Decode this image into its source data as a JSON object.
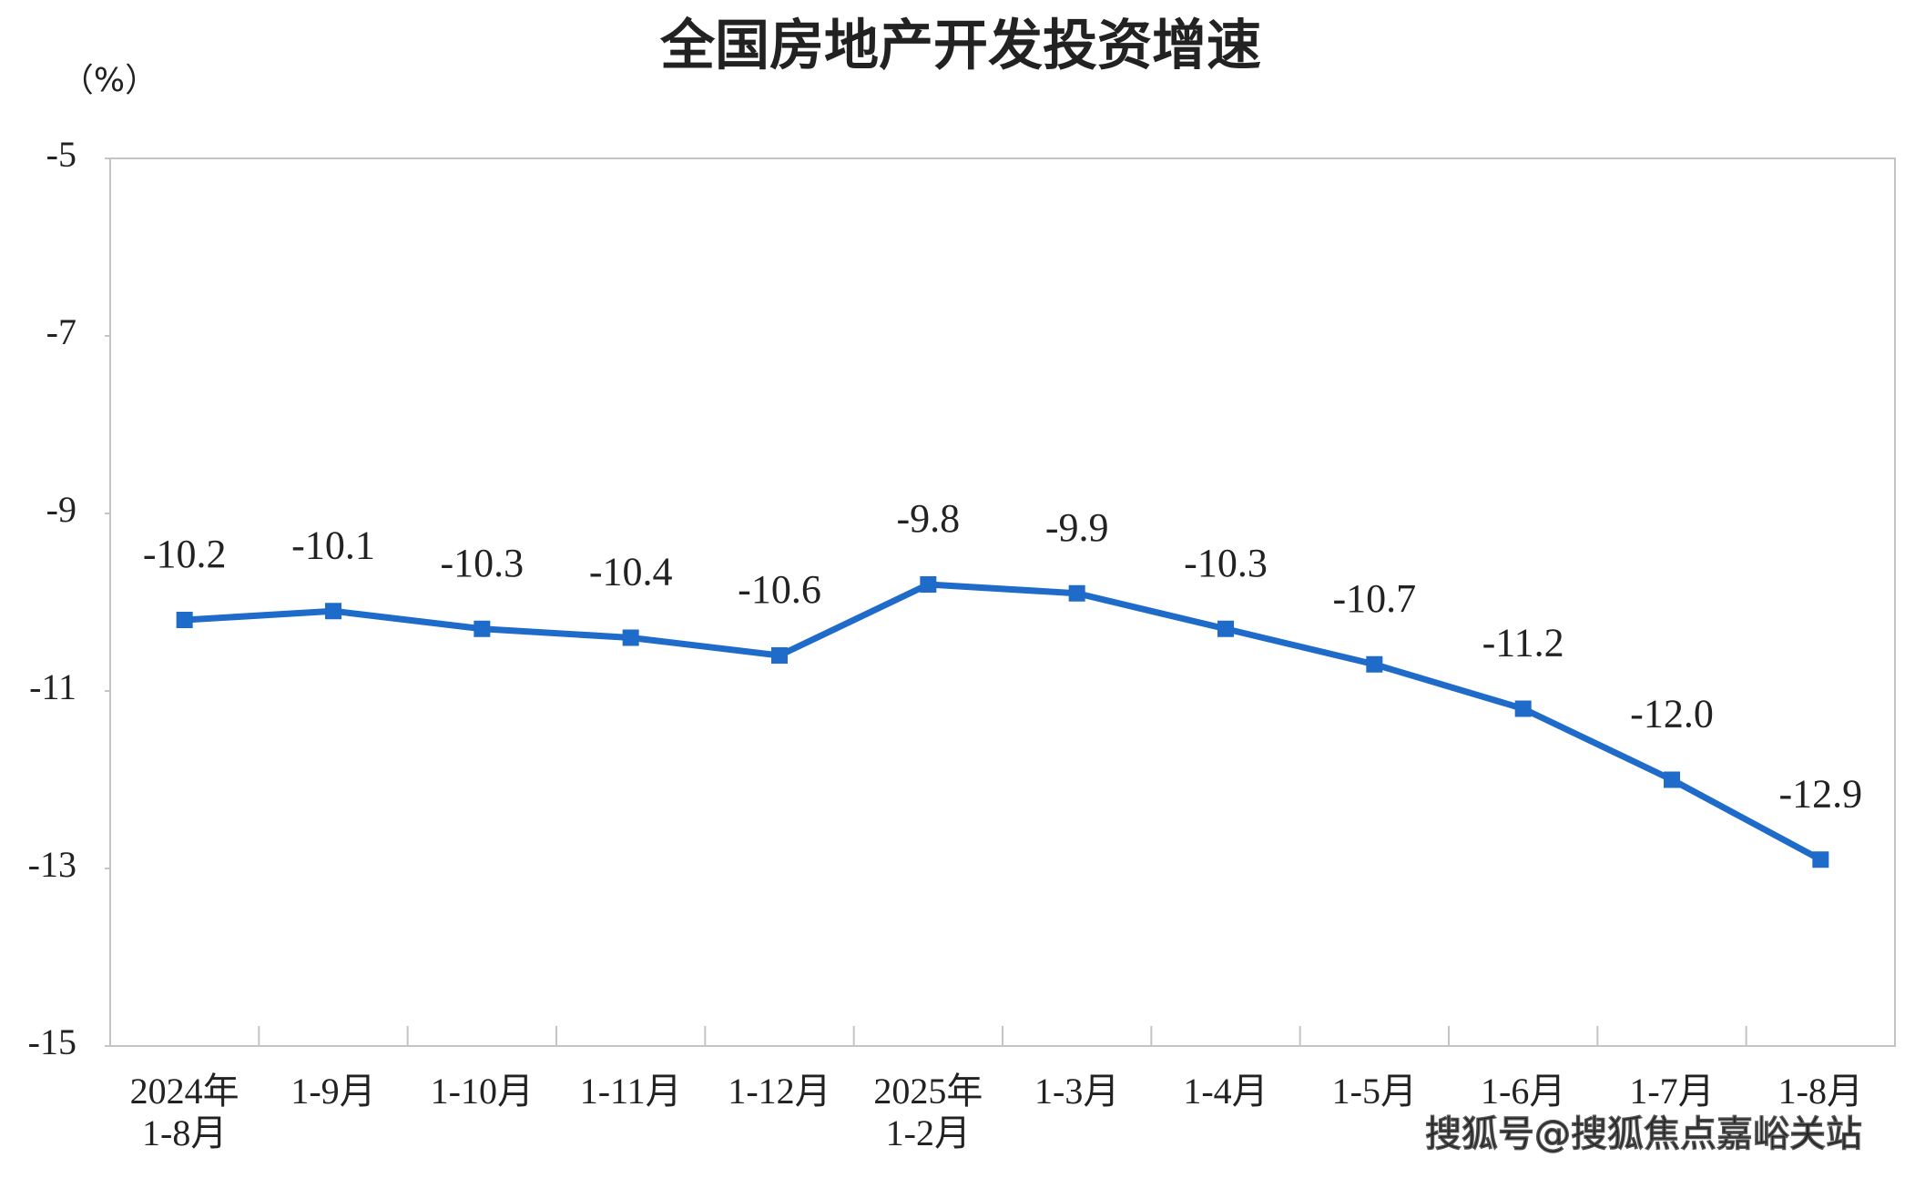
{
  "chart_data": {
    "type": "line",
    "title": "全国房地产开发投资增速",
    "y_unit": "（%）",
    "categories": [
      "2024年\n1-8月",
      "1-9月",
      "1-10月",
      "1-11月",
      "1-12月",
      "2025年\n1-2月",
      "1-3月",
      "1-4月",
      "1-5月",
      "1-6月",
      "1-7月",
      "1-8月"
    ],
    "series": [
      {
        "name": "全国房地产开发投资增速",
        "color": "#1f6bc9",
        "values": [
          -10.2,
          -10.1,
          -10.3,
          -10.4,
          -10.6,
          -9.8,
          -9.9,
          -10.3,
          -10.7,
          -11.2,
          -12.0,
          -12.9
        ],
        "value_labels": [
          "-10.2",
          "-10.1",
          "-10.3",
          "-10.4",
          "-10.6",
          "-9.8",
          "-9.9",
          "-10.3",
          "-10.7",
          "-11.2",
          "-12.0",
          "-12.9"
        ]
      }
    ],
    "ylim": [
      -15,
      -5
    ],
    "yticks": [
      -15,
      -13,
      -11,
      -9,
      -7,
      -5
    ],
    "grid": false,
    "watermark": "搜狐号@搜狐焦点嘉峪关站"
  }
}
